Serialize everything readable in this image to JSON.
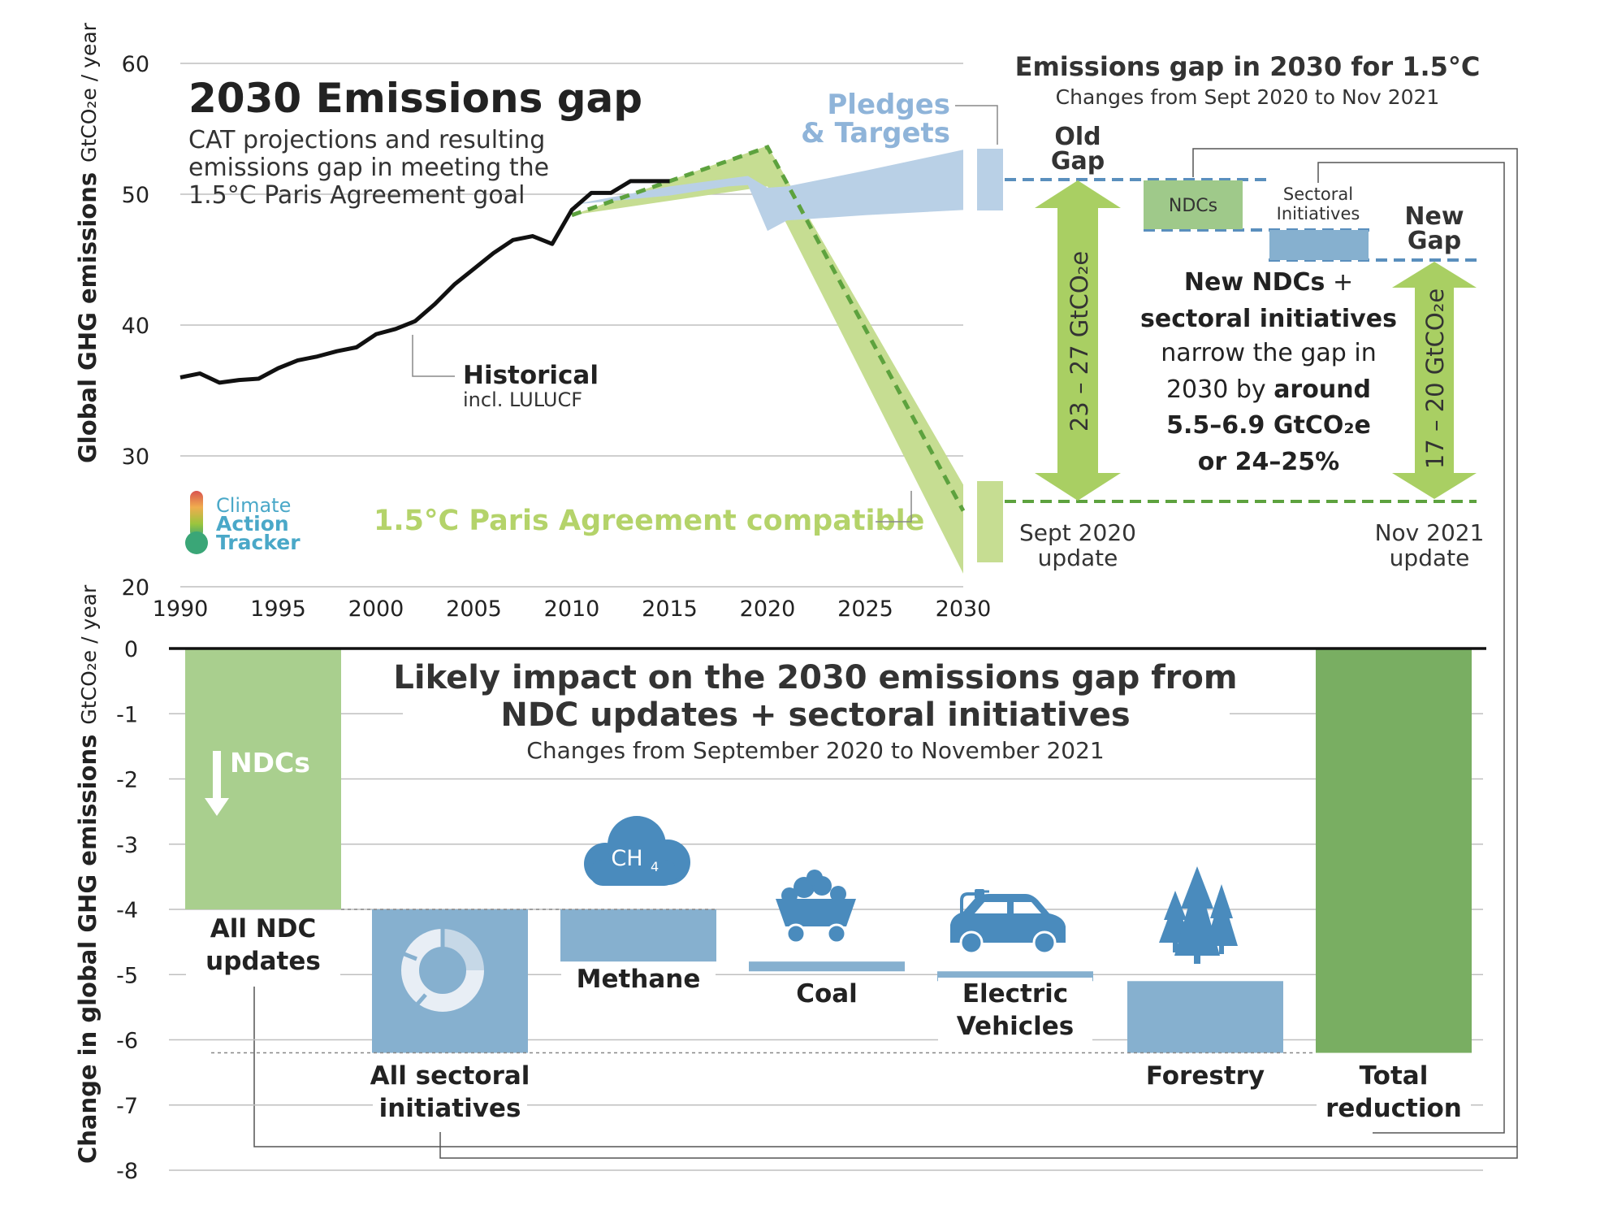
{
  "colors": {
    "historical": "#111111",
    "pledges": "#b9d0e6",
    "pledges_text": "#8fb4d9",
    "paris": "#c6dd92",
    "paris_line": "#5da23e",
    "paris_text": "#b4d36a",
    "gap_arrow": "#a9cf63",
    "ndc_box": "#9fc98a",
    "sector_bar": "#86b0cf",
    "ndc_bar": "#a9cf8e",
    "total_bar": "#79ae62",
    "dash_blue": "#5a8fbd",
    "dash_green": "#5da23e",
    "axis_text": "#222222",
    "grid": "#bfbfbf"
  },
  "chart_data": [
    {
      "type": "line",
      "title": "2030 Emissions gap",
      "subtitle_lines": [
        "CAT projections and resulting",
        "emissions gap in meeting the",
        "1.5°C Paris Agreement goal"
      ],
      "ylabel_main": "Global GHG emissions",
      "ylabel_unit": "GtCO₂e / year",
      "ylim": [
        20,
        60
      ],
      "xlim": [
        1990,
        2030
      ],
      "yticks": [
        "20",
        "30",
        "40",
        "50",
        "60"
      ],
      "xticks": [
        "1990",
        "1995",
        "2000",
        "2005",
        "2010",
        "2015",
        "2020",
        "2025",
        "2030"
      ],
      "grid": true,
      "series": [
        {
          "name": "Historical",
          "note": "incl. LULUCF",
          "x": [
            1990,
            1991,
            1992,
            1993,
            1994,
            1995,
            1996,
            1997,
            1998,
            1999,
            2000,
            2001,
            2002,
            2003,
            2004,
            2005,
            2006,
            2007,
            2008,
            2009,
            2010,
            2011,
            2012,
            2013,
            2014,
            2015
          ],
          "y": [
            36.0,
            36.3,
            35.6,
            35.8,
            35.9,
            36.7,
            37.3,
            37.6,
            38.0,
            38.3,
            39.3,
            39.7,
            40.3,
            41.6,
            43.1,
            44.3,
            45.5,
            46.5,
            46.8,
            46.2,
            48.8,
            50.1,
            50.1,
            51.0,
            51.0,
            51.0
          ]
        },
        {
          "name": "Pledges\n& Targets",
          "band": true,
          "x": [
            2010,
            2015,
            2018,
            2019,
            2020,
            2021,
            2025,
            2030
          ],
          "upper": [
            49.2,
            50.6,
            51.2,
            51.4,
            50.5,
            50.6,
            51.8,
            53.4
          ],
          "lower": [
            49.2,
            49.9,
            50.6,
            50.7,
            47.2,
            48.0,
            48.4,
            48.8
          ]
        },
        {
          "name": "1.5°C Paris Agreement compatible",
          "band": true,
          "x": [
            2010,
            2020,
            2030
          ],
          "upper": [
            48.4,
            53.7,
            27.8
          ],
          "lower": [
            48.4,
            50.6,
            21.0
          ],
          "median": [
            48.4,
            53.6,
            25.8
          ]
        }
      ],
      "annotations": {
        "historical_label": "Historical",
        "historical_note": "incl. LULUCF",
        "pledges_line1": "Pledges",
        "pledges_line2": "& Targets",
        "paris_label": "1.5°C Paris Agreement compatible"
      },
      "logo": {
        "line1": "Climate",
        "line2": "Action",
        "line3": "Tracker"
      }
    },
    {
      "type": "diagram",
      "title": "Emissions gap in 2030 for 1.5°C",
      "subtitle": "Changes from Sept 2020 to Nov 2021",
      "old_gap_line1": "Old",
      "old_gap_line2": "Gap",
      "old_gap_value": "23 – 27 GtCO₂e",
      "new_gap_line1": "New",
      "new_gap_line2": "Gap",
      "new_gap_value": "17 – 20 GtCO₂e",
      "ndcs_label": "NDCs",
      "sectoral_line1": "Sectoral",
      "sectoral_line2": "Initiatives",
      "summary_lines": [
        {
          "normal": "",
          "bold": "New NDCs",
          "after": " +"
        },
        {
          "normal": "",
          "bold": "sectoral initiatives",
          "after": ""
        },
        {
          "normal": "narrow the gap in",
          "bold": "",
          "after": ""
        },
        {
          "normal": "2030 by ",
          "bold": "around",
          "after": ""
        },
        {
          "normal": "",
          "bold": "5.5–6.9 GtCO₂e",
          "after": ""
        },
        {
          "normal": "",
          "bold": "or 24–25%",
          "after": ""
        }
      ],
      "left_foot_line1": "Sept 2020",
      "left_foot_line2": "update",
      "right_foot_line1": "Nov 2021",
      "right_foot_line2": "update"
    },
    {
      "type": "bar",
      "subtype": "waterfall",
      "title_line1": "Likely impact on the 2030 emissions gap from",
      "title_line2": "NDC updates + sectoral initiatives",
      "subtitle": "Changes from September 2020 to November 2021",
      "ylabel_main": "Change in global GHG emissions",
      "ylabel_unit": "GtCO₂e / year",
      "ylim": [
        -8,
        0
      ],
      "yticks": [
        "0",
        "-1",
        "-2",
        "-3",
        "-4",
        "-5",
        "-6",
        "-7",
        "-8"
      ],
      "grid": true,
      "bars": [
        {
          "label": "All NDC\nupdates",
          "start": 0,
          "end": -4.0,
          "kind": "ndc"
        },
        {
          "label": "All sectoral\ninitiatives",
          "start": -4.0,
          "end": -6.2,
          "kind": "sector"
        },
        {
          "label": "Methane",
          "start": -4.0,
          "end": -4.8,
          "kind": "sector"
        },
        {
          "label": "Coal",
          "start": -4.8,
          "end": -4.95,
          "kind": "sector"
        },
        {
          "label": "Electric\nVehicles",
          "start": -4.95,
          "end": -5.1,
          "kind": "sector"
        },
        {
          "label": "Forestry",
          "start": -5.1,
          "end": -6.2,
          "kind": "sector"
        },
        {
          "label": "Total\nreduction",
          "start": 0,
          "end": -6.2,
          "kind": "total"
        }
      ],
      "ndc_bar_text": "NDCs",
      "methane_icon_text": "CH",
      "methane_icon_sub": "4"
    }
  ]
}
